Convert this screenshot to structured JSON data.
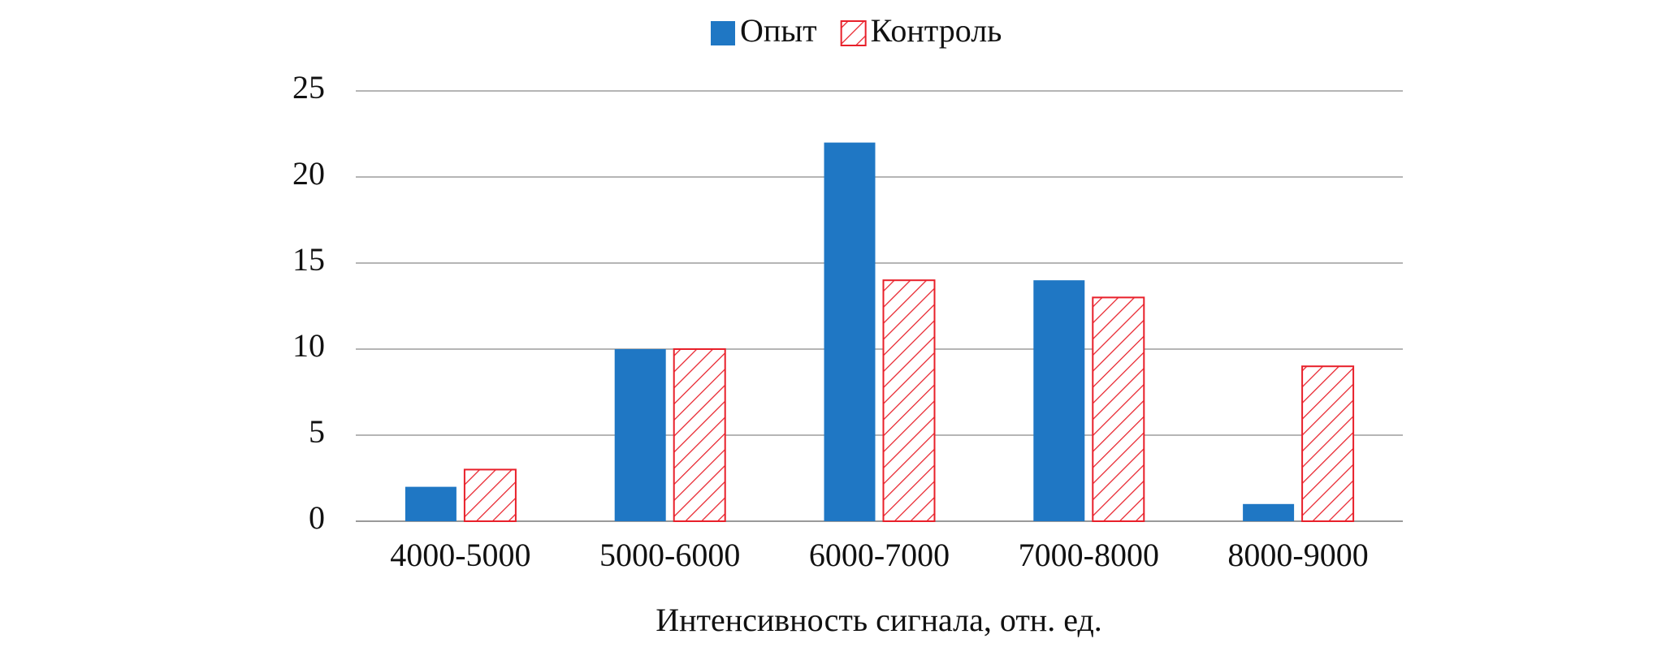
{
  "chart_data": {
    "type": "bar",
    "x_label": "Интенсивность сигнала, отн. ед.",
    "categories": [
      "4000-5000",
      "5000-6000",
      "6000-7000",
      "7000-8000",
      "8000-9000"
    ],
    "series": [
      {
        "name": "Опыт",
        "color": "#1f77c4",
        "values": [
          2,
          10,
          22,
          14,
          1
        ]
      },
      {
        "name": "Контроль",
        "color": "#e8202a",
        "hatch": true,
        "values": [
          3,
          10,
          14,
          13,
          9
        ]
      }
    ],
    "ylim": [
      0,
      25
    ],
    "yticks": [
      0,
      5,
      10,
      15,
      20,
      25
    ],
    "grid": true,
    "legend": "top"
  }
}
